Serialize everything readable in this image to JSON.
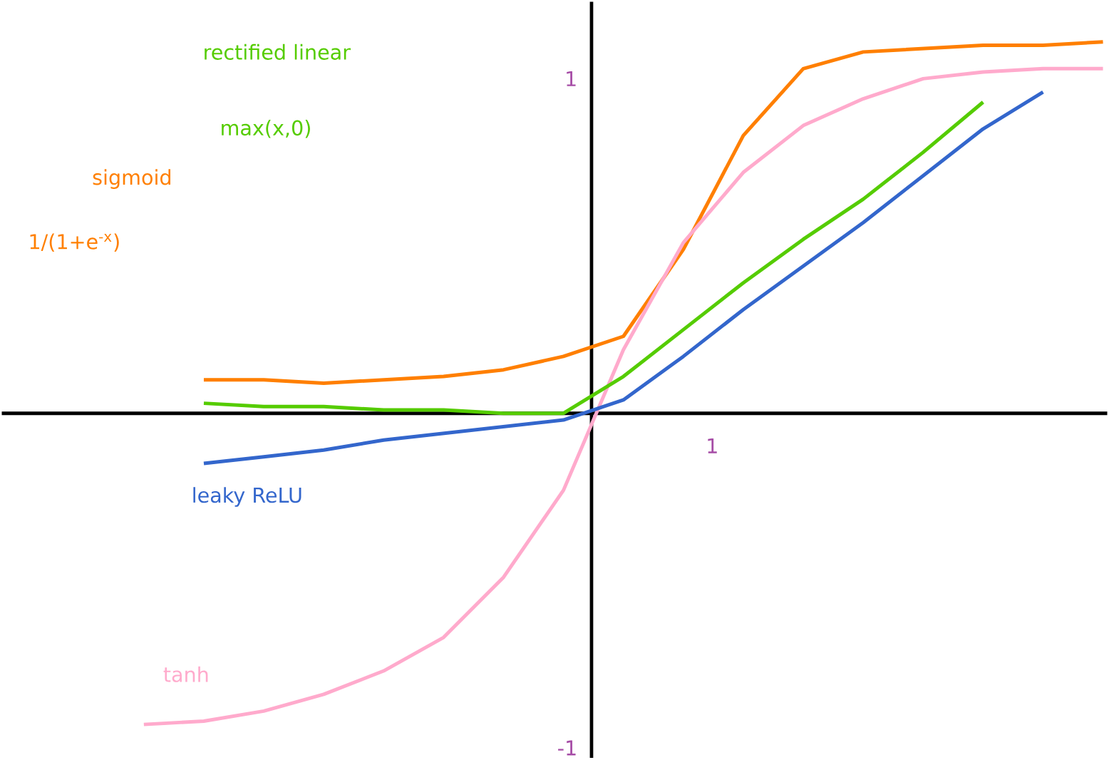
{
  "chart_data": {
    "type": "line",
    "ylim": [
      -1.03,
      1.23
    ],
    "yticks": [
      {
        "value": -1,
        "label": "-1"
      },
      {
        "value": 1,
        "label": "1"
      }
    ],
    "marker": "none",
    "line_style": "solid",
    "categories": [
      null,
      null,
      null,
      null,
      null,
      null,
      null,
      null,
      null,
      null,
      null,
      null,
      null,
      null,
      null,
      null,
      null
    ],
    "annotations": [
      "max(x,0)",
      "1/(1+e$^{-x}$)",
      "1"
    ],
    "series": [
      {
        "name": "sigmoid",
        "color": "#ff7f00",
        "values": [
          null,
          0.1,
          0.1,
          0.09,
          0.1,
          0.11,
          0.13,
          0.17,
          0.23,
          0.49,
          0.83,
          1.03,
          1.08,
          1.09,
          1.1,
          1.1,
          1.11
        ]
      },
      {
        "name": "tanh",
        "color": "#ffaacc",
        "values": [
          -0.93,
          -0.92,
          -0.89,
          -0.84,
          -0.77,
          -0.67,
          -0.49,
          -0.23,
          0.19,
          0.51,
          0.72,
          0.86,
          0.94,
          1.0,
          1.02,
          1.03,
          1.03
        ]
      },
      {
        "name": "rectified linear",
        "color": "#55cc00",
        "values": [
          null,
          0.03,
          0.02,
          0.02,
          0.01,
          0.01,
          0.0,
          0.0,
          0.11,
          0.25,
          0.39,
          0.52,
          0.64,
          0.78,
          0.93,
          null,
          null
        ]
      },
      {
        "name": "leaky ReLU",
        "color": "#3366cc",
        "values": [
          null,
          -0.15,
          -0.13,
          -0.11,
          -0.08,
          -0.06,
          -0.04,
          -0.02,
          0.04,
          0.17,
          0.31,
          0.44,
          0.57,
          0.71,
          0.85,
          0.96,
          null
        ]
      }
    ]
  }
}
